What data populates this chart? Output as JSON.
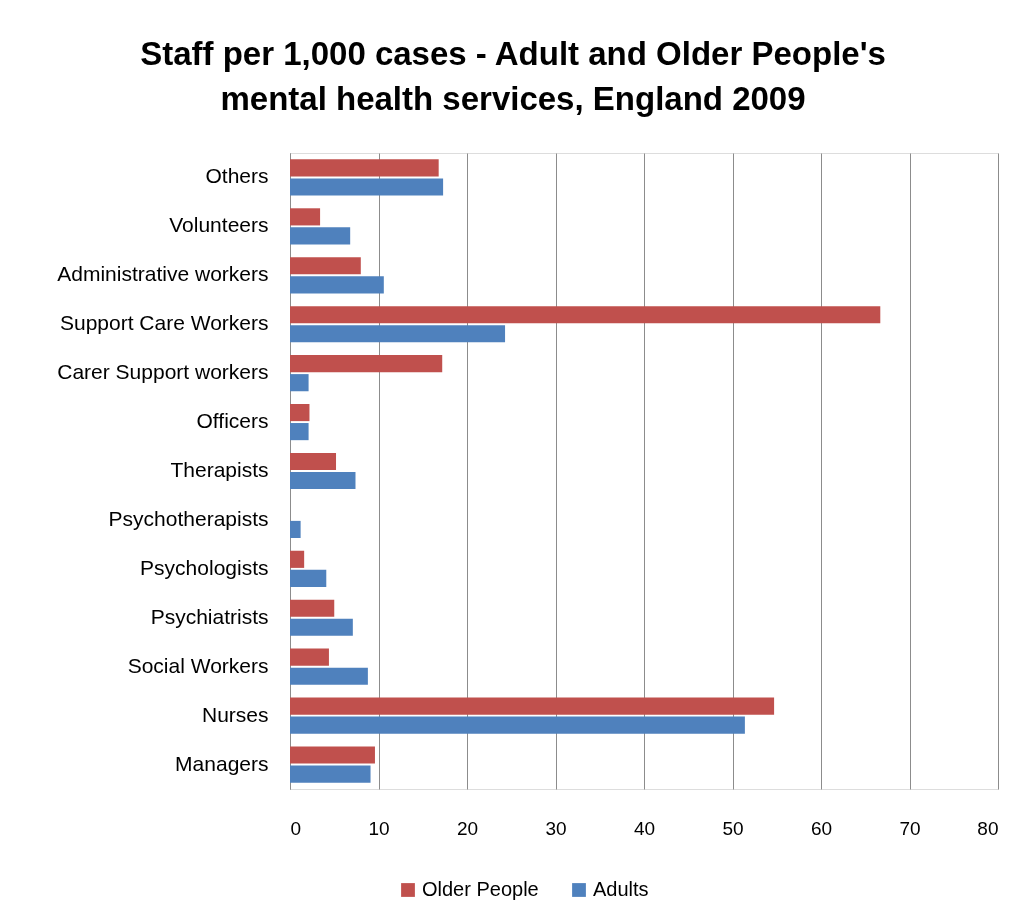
{
  "chart_data": {
    "type": "bar",
    "orientation": "horizontal",
    "title": "Staff per 1,000 cases - Adult and Older People's mental health services, England 2009",
    "categories": [
      "Others",
      "Volunteers",
      "Administrative workers",
      "Support Care Workers",
      "Carer Support workers",
      "Officers",
      "Therapists",
      "Psychotherapists",
      "Psychologists",
      "Psychiatrists",
      "Social Workers",
      "Nurses",
      "Managers"
    ],
    "series": [
      {
        "name": "Older People",
        "color": "#c0504d",
        "values": [
          16.8,
          3.4,
          8.0,
          66.7,
          17.2,
          2.2,
          5.2,
          null,
          1.6,
          5.0,
          4.4,
          54.7,
          9.6
        ]
      },
      {
        "name": "Adults",
        "color": "#4f81bd",
        "values": [
          17.3,
          6.8,
          10.6,
          24.3,
          2.1,
          2.1,
          7.4,
          1.2,
          4.1,
          7.1,
          8.8,
          51.4,
          9.1
        ]
      }
    ],
    "xlim": [
      0,
      80
    ],
    "xticks": [
      0,
      10,
      20,
      30,
      40,
      50,
      60,
      70,
      80
    ],
    "grid": "x",
    "legend": "bottom"
  }
}
